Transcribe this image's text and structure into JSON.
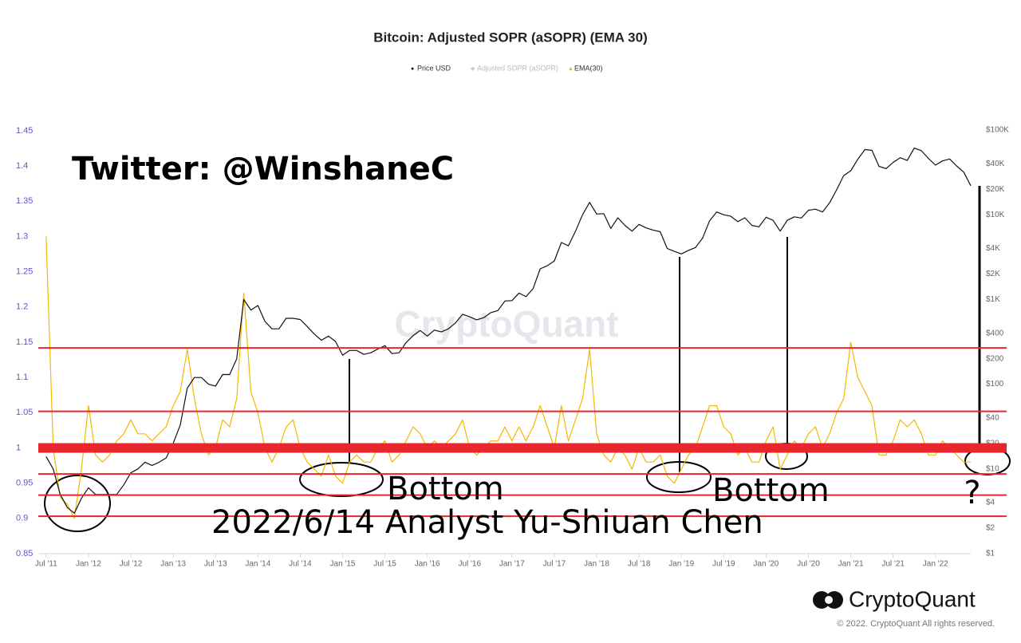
{
  "chart_data": {
    "type": "line",
    "title": "Bitcoin: Adjusted SOPR (aSOPR) (EMA 30)",
    "watermark": "CryptoQuant",
    "brand": "CryptoQuant",
    "copyright": "© 2022. CryptoQuant All rights reserved.",
    "x": [
      "2011-07",
      "2011-08",
      "2011-09",
      "2011-10",
      "2011-11",
      "2011-12",
      "2012-01",
      "2012-02",
      "2012-03",
      "2012-04",
      "2012-05",
      "2012-06",
      "2012-07",
      "2012-08",
      "2012-09",
      "2012-10",
      "2012-11",
      "2012-12",
      "2013-01",
      "2013-02",
      "2013-03",
      "2013-04",
      "2013-05",
      "2013-06",
      "2013-07",
      "2013-08",
      "2013-09",
      "2013-10",
      "2013-11",
      "2013-12",
      "2014-01",
      "2014-02",
      "2014-03",
      "2014-04",
      "2014-05",
      "2014-06",
      "2014-07",
      "2014-08",
      "2014-09",
      "2014-10",
      "2014-11",
      "2014-12",
      "2015-01",
      "2015-02",
      "2015-03",
      "2015-04",
      "2015-05",
      "2015-06",
      "2015-07",
      "2015-08",
      "2015-09",
      "2015-10",
      "2015-11",
      "2015-12",
      "2016-01",
      "2016-02",
      "2016-03",
      "2016-04",
      "2016-05",
      "2016-06",
      "2016-07",
      "2016-08",
      "2016-09",
      "2016-10",
      "2016-11",
      "2016-12",
      "2017-01",
      "2017-02",
      "2017-03",
      "2017-04",
      "2017-05",
      "2017-06",
      "2017-07",
      "2017-08",
      "2017-09",
      "2017-10",
      "2017-11",
      "2017-12",
      "2018-01",
      "2018-02",
      "2018-03",
      "2018-04",
      "2018-05",
      "2018-06",
      "2018-07",
      "2018-08",
      "2018-09",
      "2018-10",
      "2018-11",
      "2018-12",
      "2019-01",
      "2019-02",
      "2019-03",
      "2019-04",
      "2019-05",
      "2019-06",
      "2019-07",
      "2019-08",
      "2019-09",
      "2019-10",
      "2019-11",
      "2019-12",
      "2020-01",
      "2020-02",
      "2020-03",
      "2020-04",
      "2020-05",
      "2020-06",
      "2020-07",
      "2020-08",
      "2020-09",
      "2020-10",
      "2020-11",
      "2020-12",
      "2021-01",
      "2021-02",
      "2021-03",
      "2021-04",
      "2021-05",
      "2021-06",
      "2021-07",
      "2021-08",
      "2021-09",
      "2021-10",
      "2021-11",
      "2021-12",
      "2022-01",
      "2022-02",
      "2022-03",
      "2022-04",
      "2022-05",
      "2022-06"
    ],
    "xlim": [
      "2011-06",
      "2022-06"
    ],
    "xticks": [
      {
        "value": "2011-07",
        "label": "Jul '11"
      },
      {
        "value": "2012-01",
        "label": "Jan '12"
      },
      {
        "value": "2012-07",
        "label": "Jul '12"
      },
      {
        "value": "2013-01",
        "label": "Jan '13"
      },
      {
        "value": "2013-07",
        "label": "Jul '13"
      },
      {
        "value": "2014-01",
        "label": "Jan '14"
      },
      {
        "value": "2014-07",
        "label": "Jul '14"
      },
      {
        "value": "2015-01",
        "label": "Jan '15"
      },
      {
        "value": "2015-07",
        "label": "Jul '15"
      },
      {
        "value": "2016-01",
        "label": "Jan '16"
      },
      {
        "value": "2016-07",
        "label": "Jul '16"
      },
      {
        "value": "2017-01",
        "label": "Jan '17"
      },
      {
        "value": "2017-07",
        "label": "Jul '17"
      },
      {
        "value": "2018-01",
        "label": "Jan '18"
      },
      {
        "value": "2018-07",
        "label": "Jul '18"
      },
      {
        "value": "2019-01",
        "label": "Jan '19"
      },
      {
        "value": "2019-07",
        "label": "Jul '19"
      },
      {
        "value": "2020-01",
        "label": "Jan '20"
      },
      {
        "value": "2020-07",
        "label": "Jul '20"
      },
      {
        "value": "2021-01",
        "label": "Jan '21"
      },
      {
        "value": "2021-07",
        "label": "Jul '21"
      },
      {
        "value": "2022-01",
        "label": "Jan '22"
      }
    ],
    "ylim": [
      0.85,
      1.45
    ],
    "yticks": [
      0.85,
      0.9,
      0.95,
      1,
      1.05,
      1.1,
      1.15,
      1.2,
      1.25,
      1.3,
      1.35,
      1.4,
      1.45
    ],
    "y2lim": [
      1,
      100000
    ],
    "y2log": true,
    "y2ticks": [
      {
        "value": 100000,
        "label": "$100K"
      },
      {
        "value": 40000,
        "label": "$40K"
      },
      {
        "value": 20000,
        "label": "$20K"
      },
      {
        "value": 10000,
        "label": "$10K"
      },
      {
        "value": 4000,
        "label": "$4K"
      },
      {
        "value": 2000,
        "label": "$2K"
      },
      {
        "value": 1000,
        "label": "$1K"
      },
      {
        "value": 400,
        "label": "$400"
      },
      {
        "value": 200,
        "label": "$200"
      },
      {
        "value": 100,
        "label": "$100"
      },
      {
        "value": 40,
        "label": "$40"
      },
      {
        "value": 20,
        "label": "$20"
      },
      {
        "value": 10,
        "label": "$10"
      },
      {
        "value": 4,
        "label": "$4"
      },
      {
        "value": 2,
        "label": "$2"
      },
      {
        "value": 1,
        "label": "$1"
      }
    ],
    "series": [
      {
        "name": "Price USD",
        "color": "#111111",
        "axis": "y2",
        "values": [
          14,
          10,
          5,
          3.5,
          3,
          4.5,
          6,
          5,
          5,
          5,
          5,
          6.5,
          9,
          10,
          12,
          11,
          12,
          13.5,
          20,
          33,
          90,
          120,
          120,
          100,
          95,
          130,
          130,
          200,
          1000,
          750,
          850,
          550,
          450,
          450,
          600,
          600,
          580,
          480,
          390,
          330,
          370,
          320,
          220,
          250,
          250,
          225,
          235,
          260,
          285,
          230,
          235,
          310,
          375,
          430,
          370,
          435,
          415,
          450,
          530,
          670,
          625,
          575,
          610,
          700,
          740,
          960,
          970,
          1190,
          1080,
          1350,
          2300,
          2500,
          2850,
          4700,
          4300,
          6400,
          10000,
          14000,
          10200,
          10300,
          6900,
          9200,
          7500,
          6400,
          7700,
          7000,
          6600,
          6300,
          4000,
          3700,
          3450,
          3800,
          4100,
          5300,
          8500,
          10800,
          10000,
          9600,
          8300,
          9200,
          7500,
          7200,
          9350,
          8600,
          6400,
          8600,
          9450,
          9150,
          11300,
          11650,
          10800,
          13800,
          19700,
          29000,
          33100,
          45200,
          58800,
          57700,
          37300,
          35000,
          41500,
          47100,
          43800,
          61300,
          57000,
          46300,
          38500,
          43200,
          45500,
          37700,
          31800,
          22000
        ]
      },
      {
        "name": "EMA(30)",
        "color": "#f5b800",
        "values": [
          1.3,
          1.0,
          0.93,
          0.92,
          0.9,
          0.97,
          1.06,
          0.99,
          0.98,
          0.99,
          1.01,
          1.02,
          1.04,
          1.02,
          1.02,
          1.01,
          1.02,
          1.03,
          1.06,
          1.08,
          1.14,
          1.07,
          1.02,
          0.99,
          1.0,
          1.04,
          1.03,
          1.07,
          1.22,
          1.08,
          1.05,
          1.0,
          0.98,
          1.0,
          1.03,
          1.04,
          1.0,
          0.98,
          0.97,
          0.96,
          0.99,
          0.96,
          0.95,
          0.98,
          0.99,
          0.98,
          0.98,
          1.0,
          1.01,
          0.98,
          0.99,
          1.01,
          1.03,
          1.02,
          1.0,
          1.01,
          1.0,
          1.01,
          1.02,
          1.04,
          1.0,
          0.99,
          1.0,
          1.01,
          1.01,
          1.03,
          1.01,
          1.03,
          1.01,
          1.03,
          1.06,
          1.03,
          1.0,
          1.06,
          1.01,
          1.04,
          1.07,
          1.14,
          1.02,
          0.99,
          0.98,
          1.0,
          0.99,
          0.97,
          1.0,
          0.98,
          0.98,
          0.99,
          0.96,
          0.95,
          0.97,
          0.99,
          1.0,
          1.03,
          1.06,
          1.06,
          1.03,
          1.02,
          0.99,
          1.0,
          0.98,
          0.98,
          1.01,
          1.03,
          0.97,
          0.99,
          1.01,
          1.0,
          1.02,
          1.03,
          1.0,
          1.02,
          1.05,
          1.07,
          1.15,
          1.1,
          1.08,
          1.06,
          0.99,
          0.99,
          1.01,
          1.04,
          1.03,
          1.04,
          1.02,
          0.99,
          0.99,
          1.01,
          1.0,
          0.99,
          0.98,
          0.98
        ]
      }
    ],
    "inactive_legend": [
      {
        "name": "Adjusted SOPR (aSOPR)",
        "color": "#cccccc"
      }
    ],
    "reference_lines": {
      "color": "#e8262b",
      "values": [
        1.142,
        1.052,
        1.0,
        0.963,
        0.933,
        0.903
      ]
    },
    "annotations": [
      {
        "text": "Twitter: @WinshaneC"
      },
      {
        "text": "Bottom"
      },
      {
        "text": "Bottom"
      },
      {
        "text": "?"
      },
      {
        "text": "2022/6/14 Analyst Yu-Shiuan Chen"
      }
    ]
  }
}
